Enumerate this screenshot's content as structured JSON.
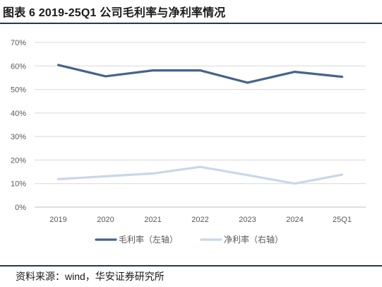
{
  "title": "图表 6 2019-25Q1 公司毛利率与净利率情况",
  "source": "资料来源：wind，华安证券研究所",
  "chart_data": {
    "type": "line",
    "categories": [
      "2019",
      "2020",
      "2021",
      "2022",
      "2023",
      "2024",
      "25Q1"
    ],
    "series": [
      {
        "name": "毛利率（左轴）",
        "color": "#44648f",
        "values": [
          60.4,
          55.6,
          58.1,
          58.1,
          52.9,
          57.5,
          55.4
        ]
      },
      {
        "name": "净利率（右轴）",
        "color": "#c9d7ea",
        "values": [
          11.9,
          13.1,
          14.3,
          17.1,
          13.6,
          10.0,
          13.8
        ]
      }
    ],
    "ylim": [
      0,
      70
    ],
    "yticks": [
      "0%",
      "10%",
      "20%",
      "30%",
      "40%",
      "50%",
      "60%",
      "70%"
    ],
    "grid": true,
    "legend": "bottom"
  }
}
